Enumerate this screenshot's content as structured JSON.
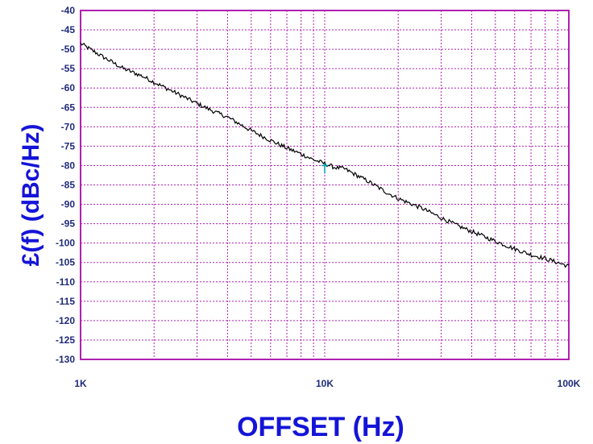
{
  "chart_data": {
    "type": "line",
    "xlabel": "OFFSET (Hz)",
    "ylabel": "£(f) (dBc/Hz)",
    "xscale": "log",
    "xlim": [
      1000,
      100000
    ],
    "ylim": [
      -130,
      -40
    ],
    "xticks": [
      {
        "value": 1000,
        "label": "1K"
      },
      {
        "value": 10000,
        "label": "10K"
      },
      {
        "value": 100000,
        "label": "100K"
      }
    ],
    "yticks": [
      {
        "value": -40,
        "label": "-40"
      },
      {
        "value": -45,
        "label": "-45"
      },
      {
        "value": -50,
        "label": "-50"
      },
      {
        "value": -55,
        "label": "-55"
      },
      {
        "value": -60,
        "label": "-60"
      },
      {
        "value": -65,
        "label": "-65"
      },
      {
        "value": -70,
        "label": "-70"
      },
      {
        "value": -75,
        "label": "-75"
      },
      {
        "value": -80,
        "label": "-80"
      },
      {
        "value": -85,
        "label": "-85"
      },
      {
        "value": -90,
        "label": "-90"
      },
      {
        "value": -95,
        "label": "-95"
      },
      {
        "value": -100,
        "label": "-100"
      },
      {
        "value": -105,
        "label": "-105"
      },
      {
        "value": -110,
        "label": "-110"
      },
      {
        "value": -115,
        "label": "-115"
      },
      {
        "value": -120,
        "label": "-120"
      },
      {
        "value": -125,
        "label": "-125"
      },
      {
        "value": -130,
        "label": "-130"
      }
    ],
    "grid": true,
    "colors": {
      "axes": "#b020b0",
      "grid": "#b020b0",
      "line": "#000000",
      "marker": "#00a0b0",
      "tick_text": "#1f2b7a",
      "label_text": "#1414d8"
    },
    "series": [
      {
        "x": [
          1000,
          1200,
          1500,
          1800,
          2000,
          2500,
          3000,
          3500,
          4000,
          5000,
          6000,
          7000,
          8000,
          9000,
          10000,
          11000,
          12000,
          15000,
          18000,
          20000,
          25000,
          30000,
          35000,
          40000,
          50000,
          60000,
          70000,
          80000,
          90000,
          100000
        ],
        "y": [
          -48.5,
          -51.5,
          -55,
          -57,
          -58.5,
          -61.5,
          -64,
          -66,
          -67.5,
          -71,
          -73.5,
          -75.5,
          -77,
          -78.5,
          -79.5,
          -80.5,
          -80.8,
          -84,
          -87,
          -88.5,
          -91,
          -93.5,
          -95.5,
          -97,
          -99.5,
          -101.5,
          -103,
          -104,
          -105,
          -106
        ]
      }
    ],
    "markers": [
      {
        "x": 10000,
        "y": -80
      }
    ]
  }
}
